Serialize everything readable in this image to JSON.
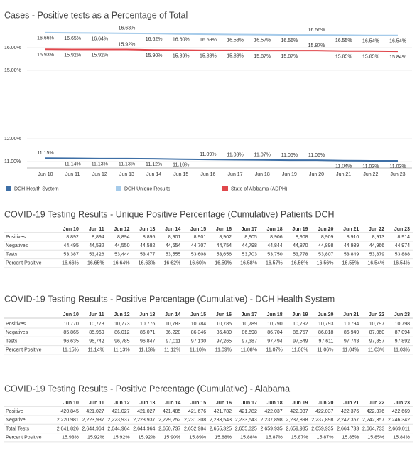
{
  "chart_data": {
    "type": "line",
    "title": "Cases - Positive tests as a Percentage of Total",
    "categories": [
      "Jun 10",
      "Jun 11",
      "Jun 12",
      "Jun 13",
      "Jun 14",
      "Jun 15",
      "Jun 16",
      "Jun 17",
      "Jun 18",
      "Jun 19",
      "Jun 20",
      "Jun 21",
      "Jun 22",
      "Jun 23"
    ],
    "series": [
      {
        "name": "DCH Health System",
        "color": "#3e6fa6",
        "values": [
          11.15,
          11.14,
          11.13,
          11.13,
          11.12,
          11.1,
          11.09,
          11.08,
          11.07,
          11.06,
          11.06,
          11.04,
          11.03,
          11.03
        ],
        "value_labels": [
          "11.15%",
          "11.14%",
          "11.13%",
          "11.13%",
          "11.12%",
          "11.10%",
          "11.09%",
          "11.08%",
          "11.07%",
          "11.06%",
          "11.06%",
          "11.04%",
          "11.03%",
          "11.03%"
        ]
      },
      {
        "name": "DCH Unique Results",
        "color": "#a6cbea",
        "values": [
          16.66,
          16.65,
          16.64,
          16.63,
          16.62,
          16.6,
          16.59,
          16.58,
          16.57,
          16.56,
          16.56,
          16.55,
          16.54,
          16.54
        ],
        "value_labels": [
          "16.66%",
          "16.65%",
          "16.64%",
          "16.63%",
          "16.62%",
          "16.60%",
          "16.59%",
          "16.58%",
          "16.57%",
          "16.56%",
          "16.56%",
          "16.55%",
          "16.54%",
          "16.54%"
        ]
      },
      {
        "name": "State of Alabama (ADPH)",
        "color": "#e0474c",
        "values": [
          15.93,
          15.92,
          15.92,
          15.92,
          15.9,
          15.89,
          15.88,
          15.88,
          15.87,
          15.87,
          15.87,
          15.85,
          15.85,
          15.84
        ],
        "value_labels": [
          "15.93%",
          "15.92%",
          "15.92%",
          "15.92%",
          "15.90%",
          "15.89%",
          "15.88%",
          "15.88%",
          "15.87%",
          "15.87%",
          "15.87%",
          "15.85%",
          "15.85%",
          "15.84%"
        ]
      }
    ],
    "ylim": [
      10.75,
      17
    ],
    "yticks": [
      {
        "value": 11,
        "label": "11.00%"
      },
      {
        "value": 12,
        "label": "12.00%"
      },
      {
        "value": 15,
        "label": "15.00%"
      },
      {
        "value": 16,
        "label": "16.00%"
      }
    ],
    "grid": true
  },
  "tables": [
    {
      "title": "COVID-19 Testing Results - Unique Positive Percentage (Cumulative) Patients DCH",
      "columns": [
        "Jun 10",
        "Jun 11",
        "Jun 12",
        "Jun 13",
        "Jun 14",
        "Jun 15",
        "Jun 16",
        "Jun 17",
        "Jun 18",
        "Jun 19",
        "Jun 20",
        "Jun 21",
        "Jun 22",
        "Jun 23"
      ],
      "rows": [
        {
          "label": "Positives",
          "cells": [
            "8,892",
            "8,894",
            "8,894",
            "8,895",
            "8,901",
            "8,901",
            "8,902",
            "8,905",
            "8,906",
            "8,908",
            "8,909",
            "8,910",
            "8,913",
            "8,914"
          ]
        },
        {
          "label": "Negatives",
          "cells": [
            "44,495",
            "44,532",
            "44,550",
            "44,582",
            "44,654",
            "44,707",
            "44,754",
            "44,798",
            "44,844",
            "44,870",
            "44,898",
            "44,939",
            "44,966",
            "44,974"
          ]
        },
        {
          "label": "Tests",
          "cells": [
            "53,387",
            "53,426",
            "53,444",
            "53,477",
            "53,555",
            "53,608",
            "53,656",
            "53,703",
            "53,750",
            "53,778",
            "53,807",
            "53,849",
            "53,879",
            "53,888"
          ]
        },
        {
          "label": "Percent Positive",
          "cells": [
            "16.66%",
            "16.65%",
            "16.64%",
            "16.63%",
            "16.62%",
            "16.60%",
            "16.59%",
            "16.58%",
            "16.57%",
            "16.56%",
            "16.56%",
            "16.55%",
            "16.54%",
            "16.54%"
          ]
        }
      ]
    },
    {
      "title": "COVID-19 Testing Results - Positive Percentage (Cumulative) - DCH Health System",
      "columns": [
        "Jun 10",
        "Jun 11",
        "Jun 12",
        "Jun 13",
        "Jun 14",
        "Jun 15",
        "Jun 16",
        "Jun 17",
        "Jun 18",
        "Jun 19",
        "Jun 20",
        "Jun 21",
        "Jun 22",
        "Jun 23"
      ],
      "rows": [
        {
          "label": "Positives",
          "cells": [
            "10,770",
            "10,773",
            "10,773",
            "10,776",
            "10,783",
            "10,784",
            "10,785",
            "10,789",
            "10,790",
            "10,792",
            "10,793",
            "10,794",
            "10,797",
            "10,798"
          ]
        },
        {
          "label": "Negatives",
          "cells": [
            "85,865",
            "85,969",
            "86,012",
            "86,071",
            "86,228",
            "86,346",
            "86,480",
            "86,598",
            "86,704",
            "86,757",
            "86,818",
            "86,949",
            "87,060",
            "87,094"
          ]
        },
        {
          "label": "Tests",
          "cells": [
            "96,635",
            "96,742",
            "96,785",
            "96,847",
            "97,011",
            "97,130",
            "97,265",
            "97,387",
            "97,494",
            "97,549",
            "97,611",
            "97,743",
            "97,857",
            "97,892"
          ]
        },
        {
          "label": "Percent Positive",
          "cells": [
            "11.15%",
            "11.14%",
            "11.13%",
            "11.13%",
            "11.12%",
            "11.10%",
            "11.09%",
            "11.08%",
            "11.07%",
            "11.06%",
            "11.06%",
            "11.04%",
            "11.03%",
            "11.03%"
          ]
        }
      ]
    },
    {
      "title": "COVID-19 Testing Results - Positive Percentage (Cumulative) - Alabama",
      "columns": [
        "Jun 10",
        "Jun 11",
        "Jun 12",
        "Jun 13",
        "Jun 14",
        "Jun 15",
        "Jun 16",
        "Jun 17",
        "Jun 18",
        "Jun 19",
        "Jun 20",
        "Jun 21",
        "Jun 22",
        "Jun 23"
      ],
      "rows": [
        {
          "label": "Positive",
          "cells": [
            "420,845",
            "421,027",
            "421,027",
            "421,027",
            "421,485",
            "421,676",
            "421,782",
            "421,782",
            "422,037",
            "422,037",
            "422,037",
            "422,376",
            "422,376",
            "422,669"
          ]
        },
        {
          "label": "Negative",
          "cells": [
            "2,220,981",
            "2,223,937",
            "2,223,937",
            "2,223,937",
            "2,229,252",
            "2,231,308",
            "2,233,543",
            "2,233,543",
            "2,237,898",
            "2,237,898",
            "2,237,898",
            "2,242,357",
            "2,242,357",
            "2,246,342"
          ]
        },
        {
          "label": "Total Tests",
          "cells": [
            "2,641,826",
            "2,644,964",
            "2,644,964",
            "2,644,964",
            "2,650,737",
            "2,652,984",
            "2,655,325",
            "2,655,325",
            "2,659,935",
            "2,659,935",
            "2,659,935",
            "2,664,733",
            "2,664,733",
            "2,669,011"
          ]
        },
        {
          "label": "Percent Positive",
          "cells": [
            "15.93%",
            "15.92%",
            "15.92%",
            "15.92%",
            "15.90%",
            "15.89%",
            "15.88%",
            "15.88%",
            "15.87%",
            "15.87%",
            "15.87%",
            "15.85%",
            "15.85%",
            "15.84%"
          ]
        }
      ]
    }
  ]
}
